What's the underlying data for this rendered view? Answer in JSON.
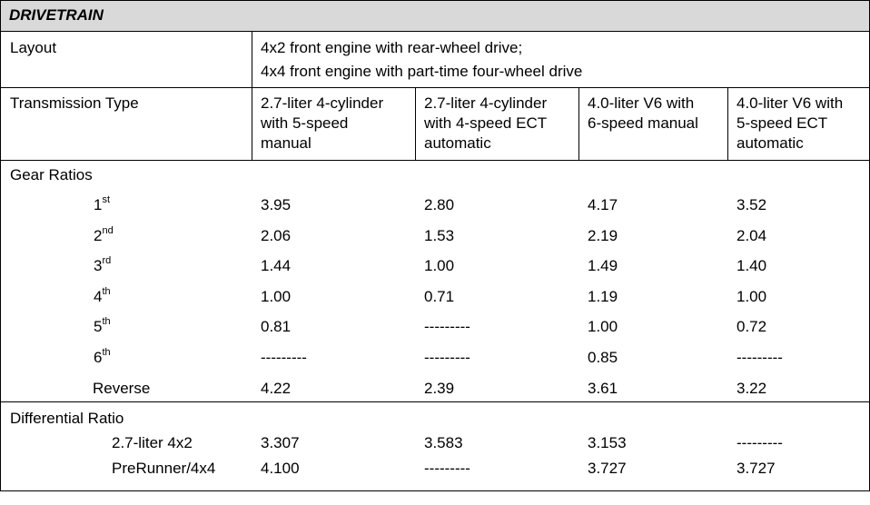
{
  "title": "DRIVETRAIN",
  "layout": {
    "label": "Layout",
    "lines": [
      "4x2 front engine with rear-wheel drive;",
      "4x4 front engine with part-time four-wheel drive"
    ]
  },
  "transmission": {
    "label": "Transmission Type",
    "columns": [
      [
        "2.7-liter 4-cylinder",
        "with 5-speed",
        "manual"
      ],
      [
        "2.7-liter 4-cylinder",
        "with 4-speed ECT",
        "automatic"
      ],
      [
        "4.0-liter V6 with",
        "6-speed manual",
        ""
      ],
      [
        "4.0-liter V6 with",
        "5-speed ECT",
        "automatic"
      ]
    ]
  },
  "gear_ratios": {
    "label": "Gear Ratios",
    "rows": [
      {
        "num": "1",
        "suffix": "st",
        "values": [
          "3.95",
          "2.80",
          "4.17",
          "3.52"
        ]
      },
      {
        "num": "2",
        "suffix": "nd",
        "values": [
          "2.06",
          "1.53",
          "2.19",
          "2.04"
        ]
      },
      {
        "num": "3",
        "suffix": "rd",
        "values": [
          "1.44",
          "1.00",
          "1.49",
          "1.40"
        ]
      },
      {
        "num": "4",
        "suffix": "th",
        "values": [
          "1.00",
          "0.71",
          "1.19",
          "1.00"
        ]
      },
      {
        "num": "5",
        "suffix": "th",
        "values": [
          "0.81",
          "---------",
          "1.00",
          "0.72"
        ]
      },
      {
        "num": "6",
        "suffix": "th",
        "values": [
          "---------",
          "---------",
          "0.85",
          "---------"
        ]
      },
      {
        "num": "Reverse",
        "suffix": "",
        "values": [
          "4.22",
          "2.39",
          "3.61",
          "3.22"
        ]
      }
    ]
  },
  "differential": {
    "label": "Differential Ratio",
    "rows": [
      {
        "name": "2.7-liter 4x2",
        "values": [
          "3.307",
          "3.583",
          "3.153",
          "---------"
        ]
      },
      {
        "name": "PreRunner/4x4",
        "values": [
          "4.100",
          "---------",
          "3.727",
          "3.727"
        ]
      }
    ]
  }
}
